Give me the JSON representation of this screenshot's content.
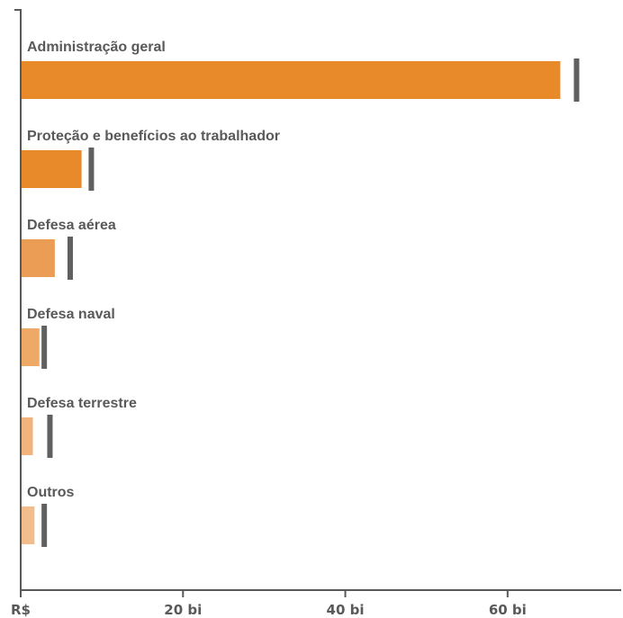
{
  "chart_data": {
    "type": "bar",
    "orientation": "horizontal",
    "categories": [
      "Administração geral",
      "Proteção e benefícios ao trabalhador",
      "Defesa aérea",
      "Defesa naval",
      "Defesa terrestre",
      "Outros"
    ],
    "values": [
      66.5,
      7.5,
      4.2,
      2.3,
      1.5,
      1.7
    ],
    "markers": [
      68.5,
      8.7,
      6.1,
      2.9,
      3.6,
      2.9
    ],
    "xlim": [
      0,
      74
    ],
    "x_ticks": [
      0,
      20,
      40,
      60
    ],
    "x_tick_labels": [
      "R$",
      "20 bi",
      "40 bi",
      "60 bi"
    ],
    "bar_colors": [
      "#e8892a",
      "#e8892a",
      "#eb9c55",
      "#eea966",
      "#f0b47c",
      "#f2bd8d"
    ],
    "marker_color": "#606060",
    "axis_color": "#595959",
    "grid": false,
    "legend": "none"
  }
}
